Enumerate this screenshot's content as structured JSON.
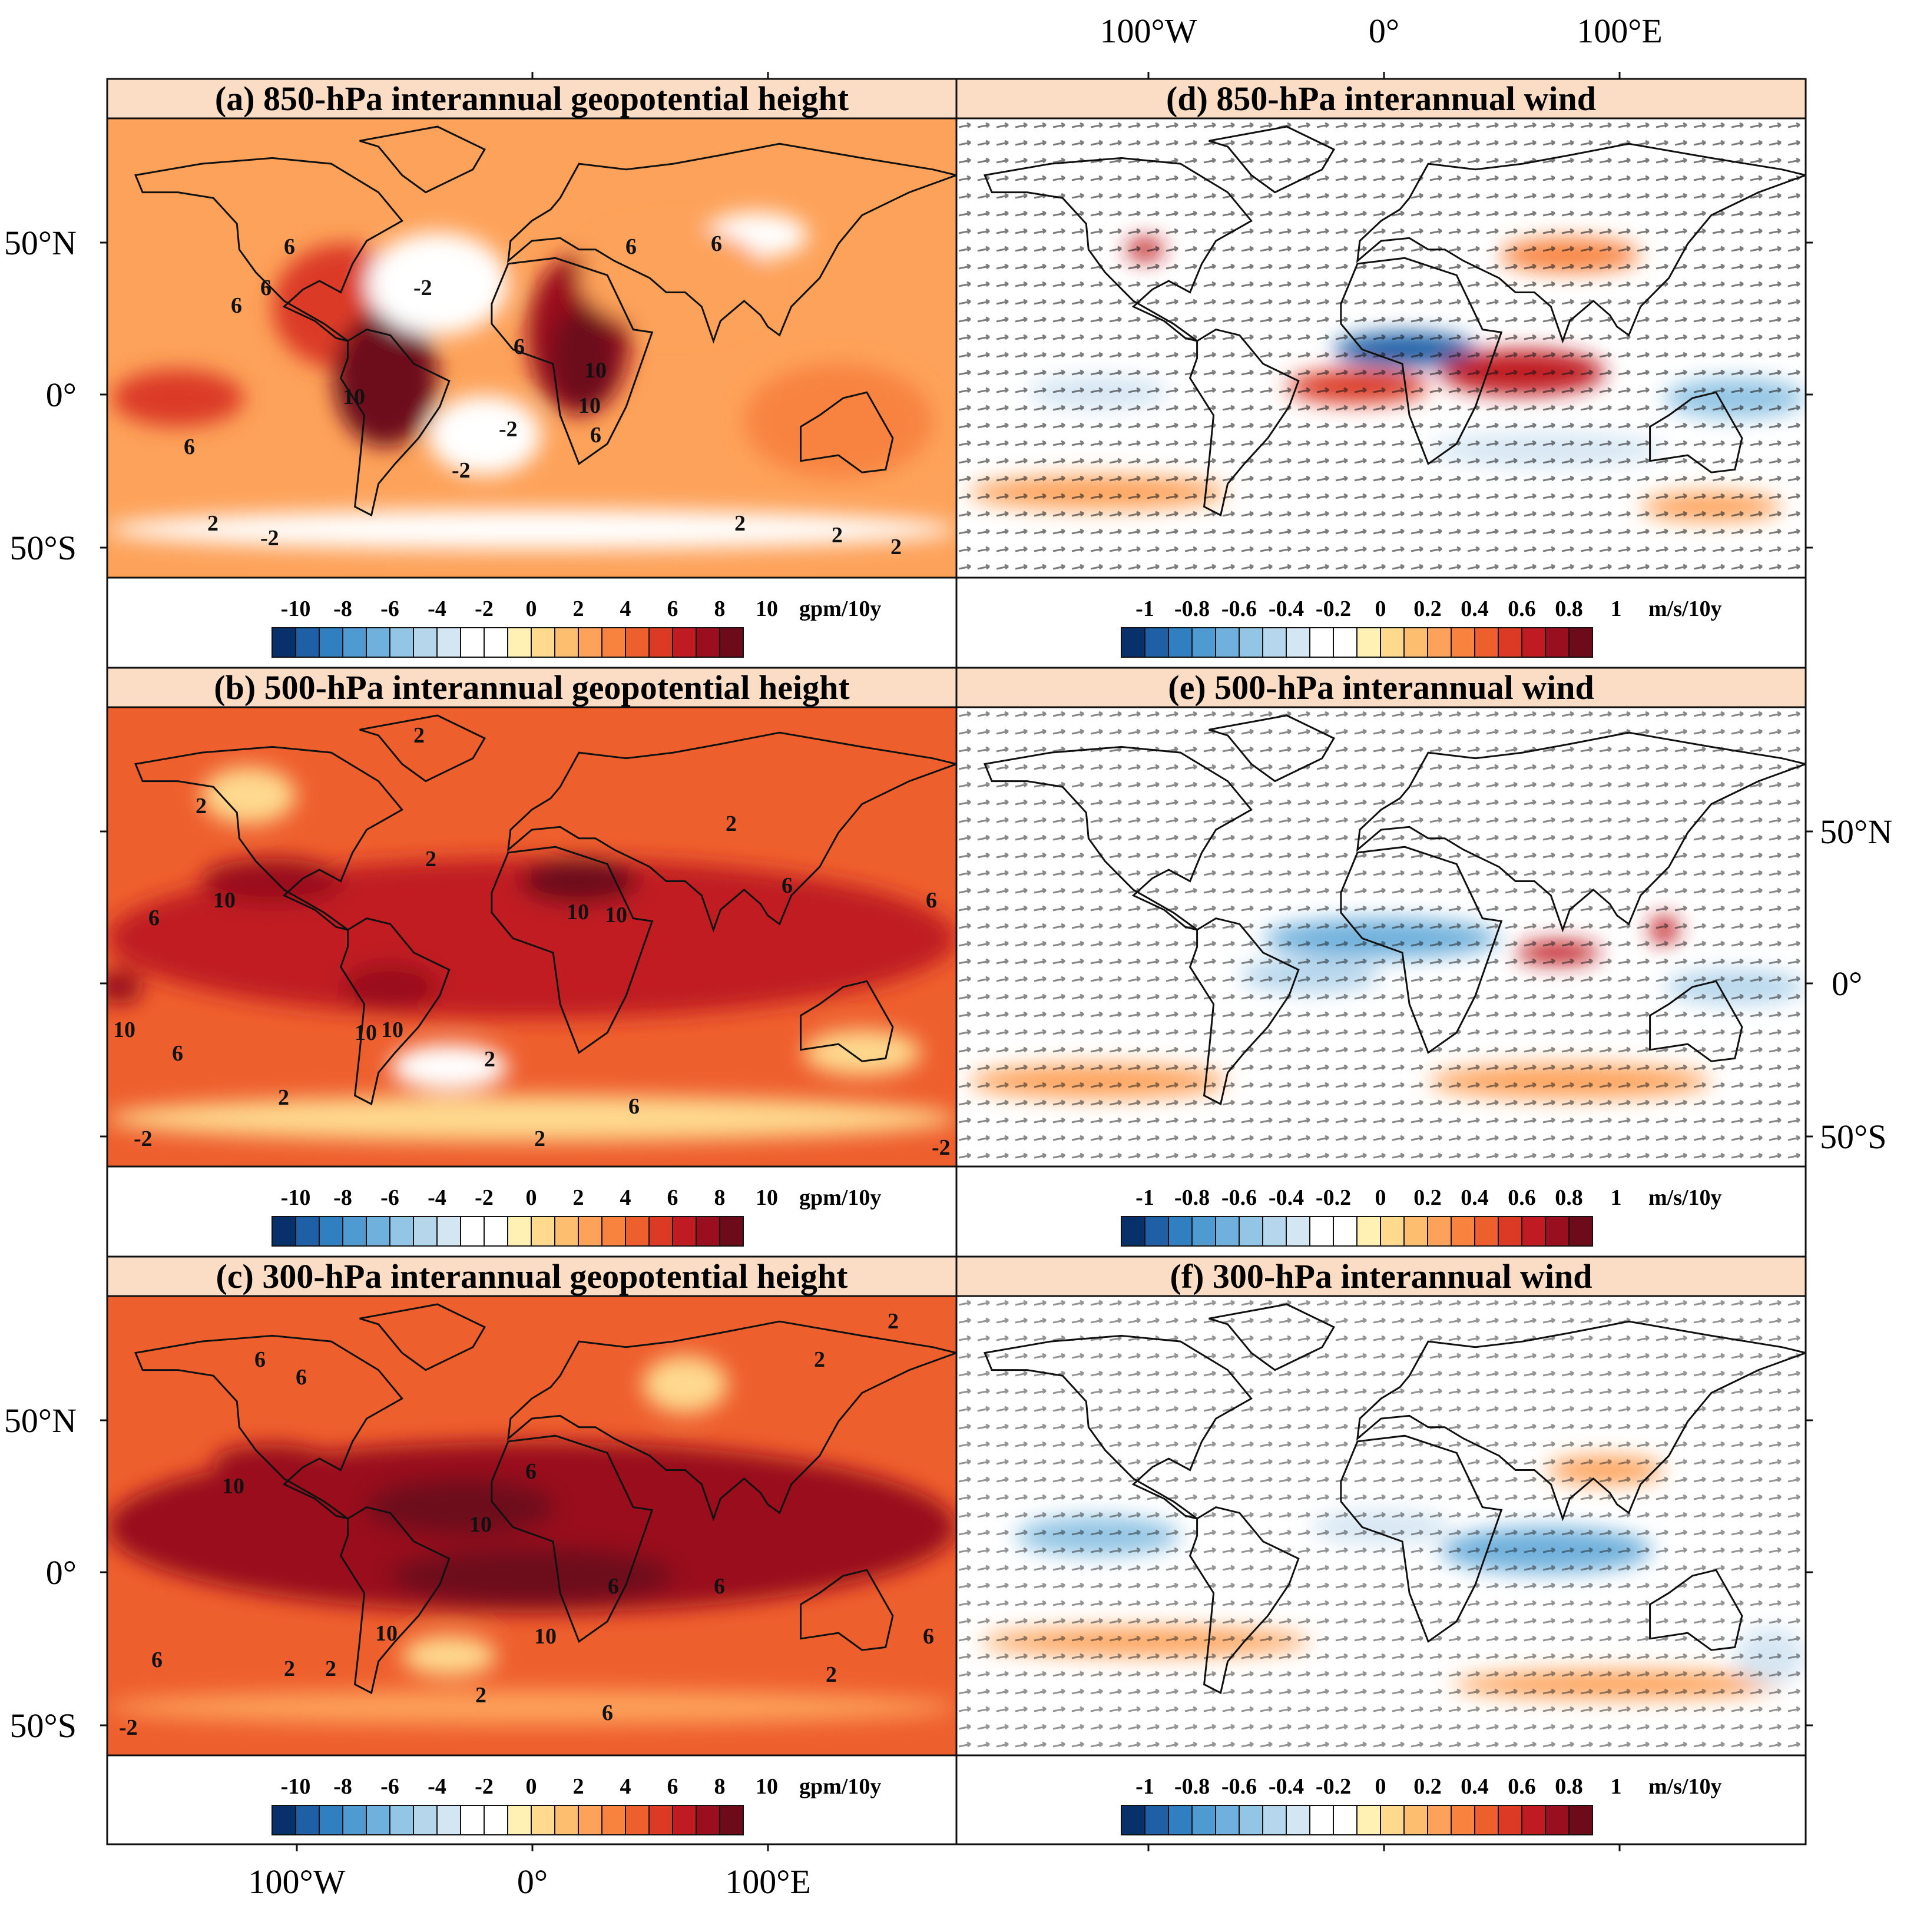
{
  "axes": {
    "top_lon_ticks": [
      "100°W",
      "0°",
      "100°E"
    ],
    "bottom_lon_ticks": [
      "100°W",
      "0°",
      "100°E"
    ],
    "left_lat_ticks_a": [
      "50°N",
      "0°",
      "50°S"
    ],
    "left_lat_ticks_c": [
      "50°N",
      "0°",
      "50°S"
    ],
    "right_lat_ticks_e": [
      "50°N",
      "0°",
      "50°S"
    ]
  },
  "colorbars": {
    "height": {
      "ticks": [
        "-10",
        "-8",
        "-6",
        "-4",
        "-2",
        "0",
        "2",
        "4",
        "6",
        "8",
        "10"
      ],
      "unit": "gpm/10y"
    },
    "wind": {
      "ticks": [
        "-1",
        "-0.8",
        "-0.6",
        "-0.4",
        "-0.2",
        "0",
        "0.2",
        "0.4",
        "0.6",
        "0.8",
        "1"
      ],
      "unit": "m/s/10y"
    },
    "palette": [
      "#08306b",
      "#1f5fa6",
      "#2f7fc1",
      "#4f9ad0",
      "#6fb0dc",
      "#93c5e4",
      "#b6d6ec",
      "#d5e6f3",
      "#ffffff",
      "#ffffff",
      "#fff0b3",
      "#fed98e",
      "#fdbf6f",
      "#fda25a",
      "#f8833f",
      "#ee5f2e",
      "#db3a25",
      "#c01b22",
      "#990f1f",
      "#6d0b1a"
    ]
  },
  "panels": [
    {
      "id": "a",
      "title": "(a) 850-hPa interannual geopotential height",
      "kind": "height",
      "contour_labels": [
        "6",
        "6",
        "6",
        "6",
        "6",
        "-2",
        "6",
        "10",
        "10",
        "10",
        "6",
        "-2",
        "-2",
        "6",
        "2",
        "-2",
        "2",
        "2",
        "2"
      ],
      "features": [
        {
          "lon": -80,
          "lat": 20,
          "rx": 30,
          "ry": 22,
          "level": 6
        },
        {
          "lon": -62,
          "lat": -5,
          "rx": 22,
          "ry": 24,
          "level": 9
        },
        {
          "lon": -150,
          "lat": -12,
          "rx": 28,
          "ry": 10,
          "level": 6
        },
        {
          "lon": 20,
          "lat": 10,
          "rx": 22,
          "ry": 28,
          "level": 8
        },
        {
          "lon": 22,
          "lat": 2,
          "rx": 14,
          "ry": 18,
          "level": 10
        },
        {
          "lon": -40,
          "lat": 28,
          "rx": 30,
          "ry": 18,
          "level": -1
        },
        {
          "lon": -20,
          "lat": -25,
          "rx": 24,
          "ry": 14,
          "level": -1
        },
        {
          "lon": 95,
          "lat": 45,
          "rx": 22,
          "ry": 8,
          "level": -2
        },
        {
          "lon": 60,
          "lat": 30,
          "rx": 40,
          "ry": 18,
          "level": 3
        },
        {
          "lon": 0,
          "lat": -58,
          "rx": 180,
          "ry": 7,
          "level": -1
        },
        {
          "lon": 130,
          "lat": -20,
          "rx": 40,
          "ry": 20,
          "level": 4
        }
      ]
    },
    {
      "id": "d",
      "title": "(d) 850-hPa interannual wind",
      "kind": "wind",
      "features": [
        {
          "lon": 10,
          "lat": 5,
          "rx": 30,
          "ry": 6,
          "level": -9
        },
        {
          "lon": 60,
          "lat": -3,
          "rx": 35,
          "ry": 8,
          "level": 7
        },
        {
          "lon": -10,
          "lat": -8,
          "rx": 30,
          "ry": 6,
          "level": 6
        },
        {
          "lon": 150,
          "lat": -12,
          "rx": 30,
          "ry": 7,
          "level": -5
        },
        {
          "lon": -120,
          "lat": -10,
          "rx": 30,
          "ry": 6,
          "level": -3
        },
        {
          "lon": -120,
          "lat": -45,
          "rx": 55,
          "ry": 6,
          "level": 3
        },
        {
          "lon": 70,
          "lat": -30,
          "rx": 50,
          "ry": 6,
          "level": -3
        },
        {
          "lon": -100,
          "lat": 40,
          "rx": 8,
          "ry": 4,
          "level": 7
        },
        {
          "lon": 80,
          "lat": 38,
          "rx": 30,
          "ry": 6,
          "level": 4
        },
        {
          "lon": 0,
          "lat": 40,
          "rx": 40,
          "ry": 16,
          "level": -1
        },
        {
          "lon": 140,
          "lat": -50,
          "rx": 30,
          "ry": 5,
          "level": 3
        }
      ]
    },
    {
      "id": "b",
      "title": "(b) 500-hPa interannual geopotential height",
      "kind": "height",
      "contour_labels": [
        "2",
        "2",
        "2",
        "2",
        "10",
        "6",
        "10",
        "10",
        "6",
        "6",
        "10",
        "6",
        "10",
        "10",
        "6",
        "2",
        "-2",
        "2",
        "2",
        "-2"
      ],
      "features": [
        {
          "lon": 0,
          "lat": 5,
          "rx": 180,
          "ry": 28,
          "level": 7
        },
        {
          "lon": -110,
          "lat": 25,
          "rx": 30,
          "ry": 8,
          "level": 8
        },
        {
          "lon": 20,
          "lat": 25,
          "rx": 25,
          "ry": 8,
          "level": 9
        },
        {
          "lon": -60,
          "lat": -12,
          "rx": 20,
          "ry": 8,
          "level": 8
        },
        {
          "lon": -175,
          "lat": -12,
          "rx": 10,
          "ry": 6,
          "level": 8
        },
        {
          "lon": -35,
          "lat": -40,
          "rx": 25,
          "ry": 8,
          "level": -1
        },
        {
          "lon": 140,
          "lat": -35,
          "rx": 25,
          "ry": 8,
          "level": 1
        },
        {
          "lon": -120,
          "lat": 55,
          "rx": 20,
          "ry": 10,
          "level": 1
        },
        {
          "lon": 0,
          "lat": -58,
          "rx": 180,
          "ry": 8,
          "level": 1
        }
      ]
    },
    {
      "id": "e",
      "title": "(e) 500-hPa interannual wind",
      "kind": "wind",
      "features": [
        {
          "lon": 0,
          "lat": 5,
          "rx": 50,
          "ry": 7,
          "level": -6
        },
        {
          "lon": -30,
          "lat": -8,
          "rx": 30,
          "ry": 6,
          "level": -4
        },
        {
          "lon": 75,
          "lat": 0,
          "rx": 18,
          "ry": 4,
          "level": 7
        },
        {
          "lon": 120,
          "lat": 8,
          "rx": 6,
          "ry": 5,
          "level": 7
        },
        {
          "lon": 150,
          "lat": -12,
          "rx": 30,
          "ry": 6,
          "level": -4
        },
        {
          "lon": -120,
          "lat": -45,
          "rx": 55,
          "ry": 6,
          "level": 3
        },
        {
          "lon": 80,
          "lat": -45,
          "rx": 60,
          "ry": 6,
          "level": 3
        },
        {
          "lon": -100,
          "lat": 58,
          "rx": 50,
          "ry": 14,
          "level": -1
        },
        {
          "lon": 60,
          "lat": 55,
          "rx": 50,
          "ry": 12,
          "level": -1
        },
        {
          "lon": -120,
          "lat": 25,
          "rx": 40,
          "ry": 6,
          "level": -2
        }
      ]
    },
    {
      "id": "c",
      "title": "(c) 300-hPa interannual geopotential height",
      "kind": "height",
      "contour_labels": [
        "6",
        "6",
        "2",
        "2",
        "10",
        "10",
        "6",
        "10",
        "10",
        "6",
        "6",
        "6",
        "2",
        "2",
        "2",
        "2",
        "6",
        "-2",
        "6"
      ],
      "features": [
        {
          "lon": 0,
          "lat": 5,
          "rx": 180,
          "ry": 30,
          "level": 8
        },
        {
          "lon": -30,
          "lat": 12,
          "rx": 40,
          "ry": 10,
          "level": 9
        },
        {
          "lon": 0,
          "lat": -12,
          "rx": 60,
          "ry": 10,
          "level": 9
        },
        {
          "lon": -110,
          "lat": 28,
          "rx": 25,
          "ry": 6,
          "level": 8
        },
        {
          "lon": 65,
          "lat": 55,
          "rx": 18,
          "ry": 10,
          "level": 1
        },
        {
          "lon": -35,
          "lat": -40,
          "rx": 20,
          "ry": 7,
          "level": 1
        },
        {
          "lon": 0,
          "lat": -58,
          "rx": 180,
          "ry": 6,
          "level": 3
        }
      ]
    },
    {
      "id": "f",
      "title": "(f) 300-hPa interannual wind",
      "kind": "wind",
      "features": [
        {
          "lon": 70,
          "lat": -3,
          "rx": 45,
          "ry": 8,
          "level": -6
        },
        {
          "lon": -120,
          "lat": 2,
          "rx": 35,
          "ry": 7,
          "level": -5
        },
        {
          "lon": 0,
          "lat": 5,
          "rx": 30,
          "ry": 6,
          "level": -3
        },
        {
          "lon": -100,
          "lat": -35,
          "rx": 70,
          "ry": 5,
          "level": 3
        },
        {
          "lon": 100,
          "lat": -50,
          "rx": 70,
          "ry": 5,
          "level": 3
        },
        {
          "lon": 60,
          "lat": 60,
          "rx": 60,
          "ry": 14,
          "level": -2
        },
        {
          "lon": 95,
          "lat": 25,
          "rx": 25,
          "ry": 5,
          "level": 3
        },
        {
          "lon": 165,
          "lat": -40,
          "rx": 15,
          "ry": 10,
          "level": -3
        }
      ]
    }
  ]
}
